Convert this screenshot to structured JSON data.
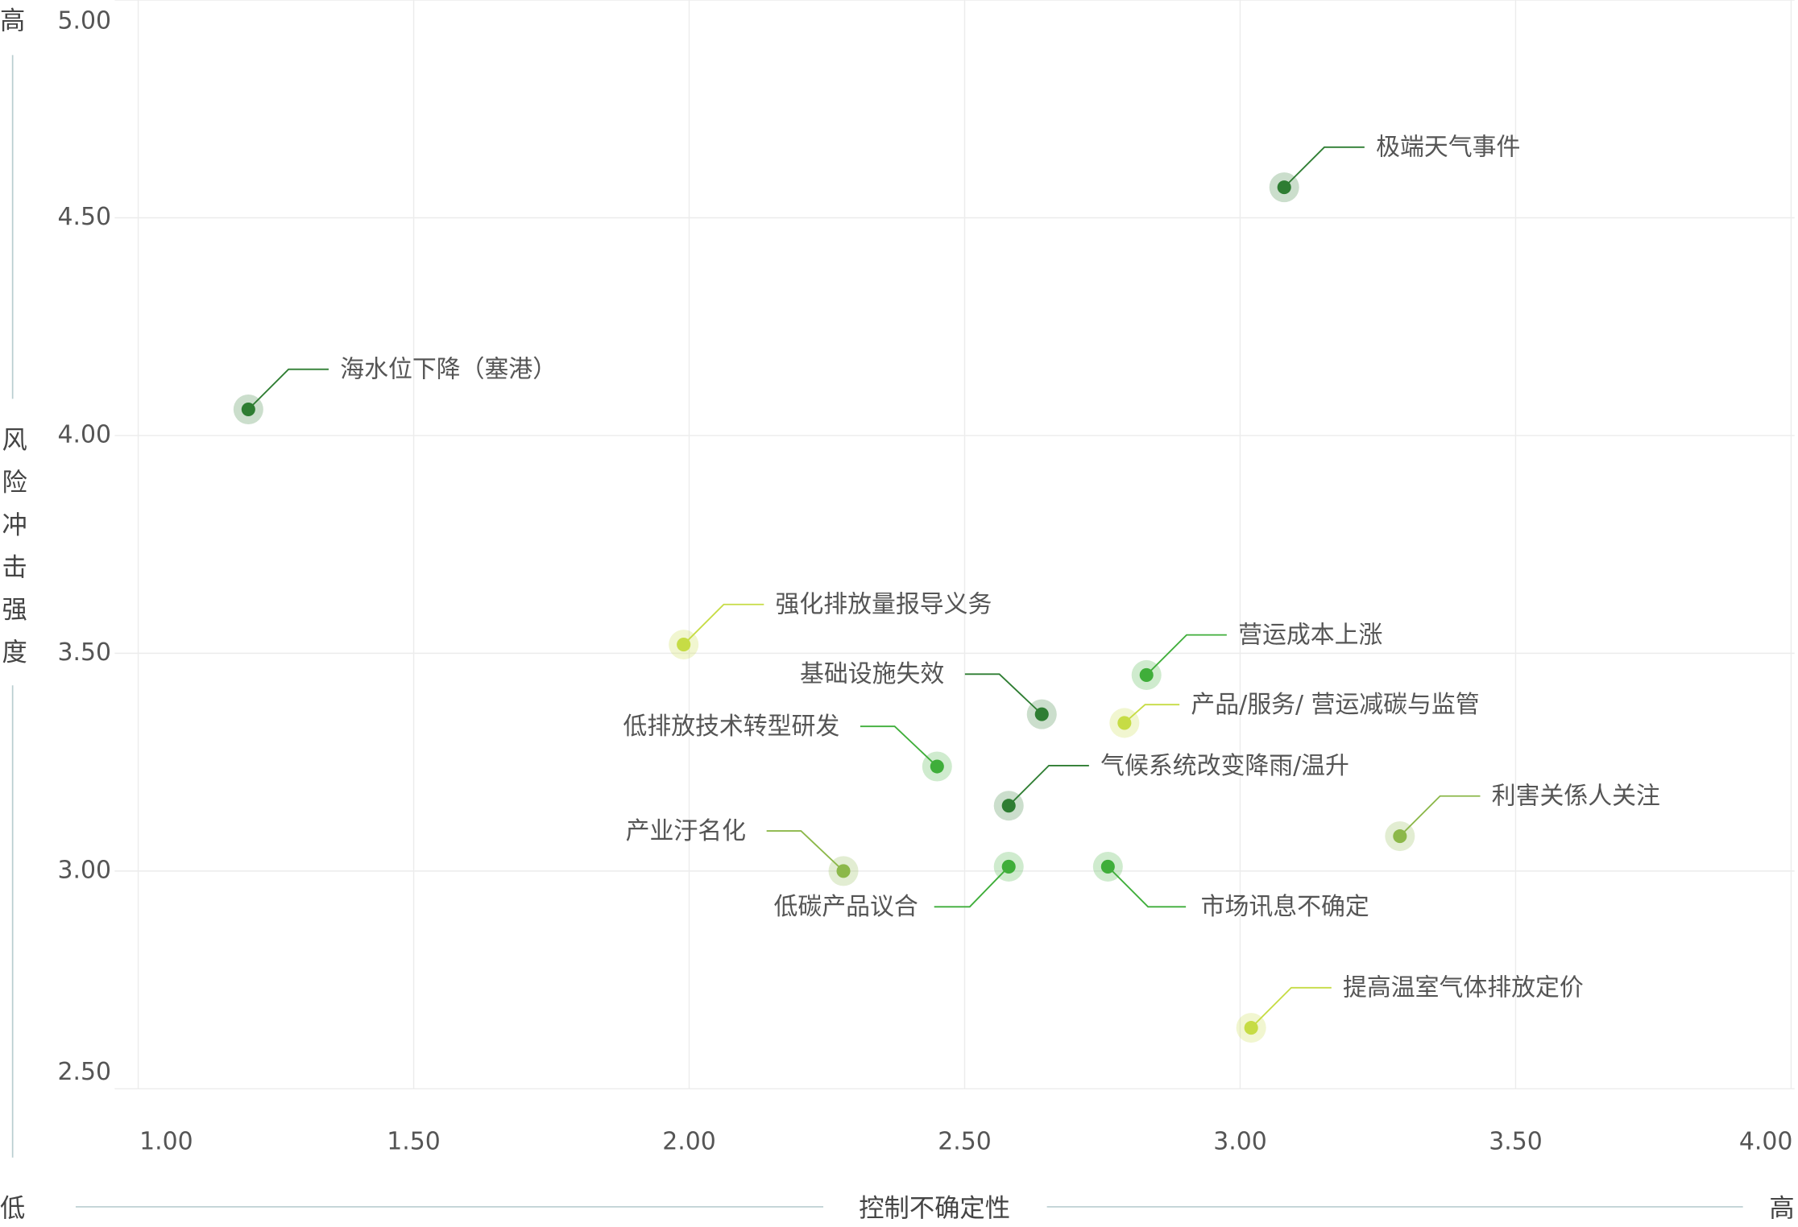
{
  "chart_data": {
    "type": "scatter",
    "x_axis_label": "控制不确定性",
    "y_axis_label": "风险冲击强度",
    "y_axis_high": "高",
    "axis_low": "低",
    "x_axis_high": "高",
    "labels": [
      "极端天气事件",
      "海水位下降（塞港）",
      "强化排放量报导义务",
      "营运成本上涨",
      "基础设施失效",
      "产品/服务/ 营运减碳与监管",
      "低排放技术转型研发",
      "气候系统改变降雨/温升",
      "利害关係人关注",
      "产业汙名化",
      "低碳产品议合",
      "市场讯息不确定",
      "提高温室气体排放定价"
    ],
    "x": [
      3.08,
      1.2,
      1.99,
      2.83,
      2.64,
      2.79,
      2.45,
      2.58,
      3.29,
      2.28,
      2.58,
      2.76,
      3.02
    ],
    "y": [
      4.57,
      4.06,
      3.52,
      3.45,
      3.36,
      3.34,
      3.24,
      3.15,
      3.08,
      3.0,
      3.01,
      3.01,
      2.64
    ],
    "colors": [
      "#2e7d32",
      "#2e7d32",
      "#c6dc45",
      "#3fae3a",
      "#2e7d32",
      "#c6dc45",
      "#3fae3a",
      "#2e7d32",
      "#8cb84a",
      "#8cb84a",
      "#3fae3a",
      "#3fae3a",
      "#c6dc45"
    ],
    "xlim": [
      1,
      4
    ],
    "ylim": [
      2.5,
      5
    ],
    "xticks": [
      {
        "value": 1,
        "label": "1.00"
      },
      {
        "value": 1.5,
        "label": "1.50"
      },
      {
        "value": 2,
        "label": "2.00"
      },
      {
        "value": 2.5,
        "label": "2.50"
      },
      {
        "value": 3,
        "label": "3.00"
      },
      {
        "value": 3.5,
        "label": "3.50"
      },
      {
        "value": 4,
        "label": "4.00"
      }
    ],
    "yticks": [
      {
        "value": 2.5,
        "label": "2.50"
      },
      {
        "value": 3,
        "label": "3.00"
      },
      {
        "value": 3.5,
        "label": "3.50"
      },
      {
        "value": 4,
        "label": "4.00"
      },
      {
        "value": 4.5,
        "label": "4.50"
      },
      {
        "value": 5,
        "label": "5.00"
      }
    ],
    "grid": true
  }
}
